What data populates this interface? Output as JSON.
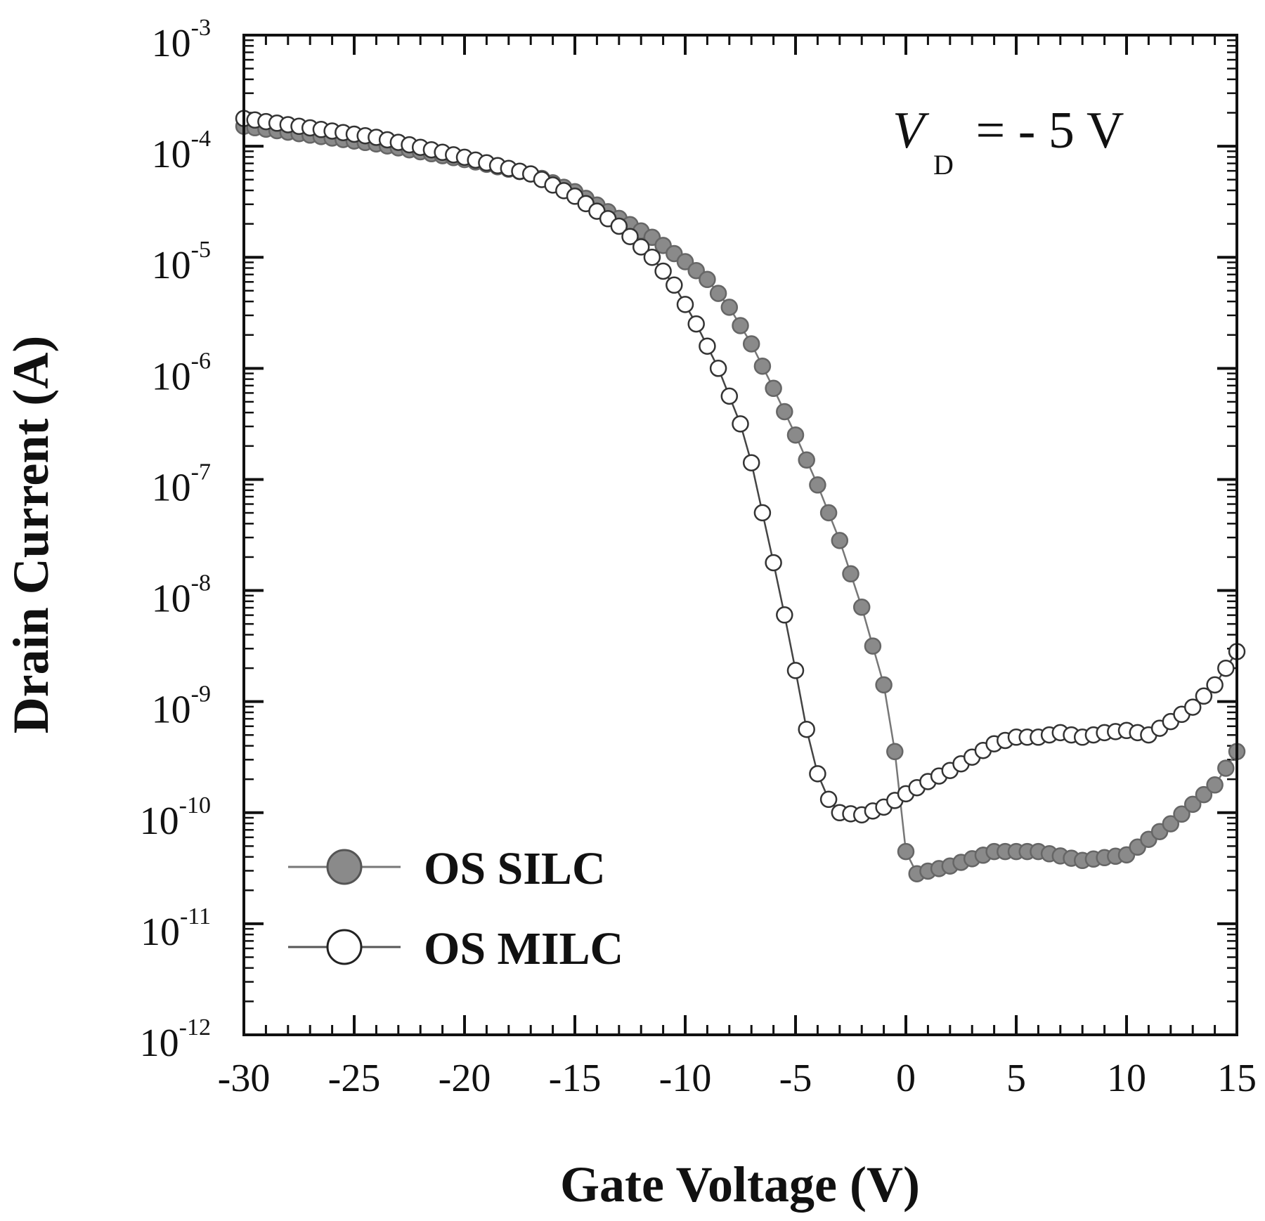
{
  "chart_data": {
    "type": "scatter",
    "xlabel": "Gate Voltage (V)",
    "ylabel": "Drain Current (A)",
    "xlim": [
      -30,
      15
    ],
    "ylim_log10": [
      -12,
      -3
    ],
    "yscale": "log",
    "x_ticks": [
      -30,
      -25,
      -20,
      -15,
      -10,
      -5,
      0,
      5,
      10,
      15
    ],
    "x_tick_labels": [
      "-30",
      "-25",
      "-20",
      "-15",
      "-10",
      "-5",
      "0",
      "5",
      "10",
      "15"
    ],
    "y_ticks_log10": [
      -12,
      -11,
      -10,
      -9,
      -8,
      -7,
      -6,
      -5,
      -4,
      -3
    ],
    "y_tick_labels": [
      {
        "base": "10",
        "exp": "-12"
      },
      {
        "base": "10",
        "exp": "-11"
      },
      {
        "base": "10",
        "exp": "-10"
      },
      {
        "base": "10",
        "exp": "-9"
      },
      {
        "base": "10",
        "exp": "-8"
      },
      {
        "base": "10",
        "exp": "-7"
      },
      {
        "base": "10",
        "exp": "-6"
      },
      {
        "base": "10",
        "exp": "-5"
      },
      {
        "base": "10",
        "exp": "-4"
      },
      {
        "base": "10",
        "exp": "-3"
      }
    ],
    "annotation": {
      "main": "V",
      "sub": "D",
      "rest": " = - 5 V"
    },
    "legend": [
      {
        "name": "OS SILC",
        "marker": "filled-circle"
      },
      {
        "name": "OS MILC",
        "marker": "open-circle"
      }
    ],
    "series": [
      {
        "name": "OS SILC",
        "marker": "filled",
        "color": "#8a8a8a",
        "points_log10": [
          [
            -30,
            -3.82
          ],
          [
            -24,
            -3.98
          ],
          [
            -20,
            -4.12
          ],
          [
            -17,
            -4.25
          ],
          [
            -15,
            -4.41
          ],
          [
            -13,
            -4.65
          ],
          [
            -11.5,
            -4.82
          ],
          [
            -10,
            -5.04
          ],
          [
            -9,
            -5.2
          ],
          [
            -8,
            -5.45
          ],
          [
            -7,
            -5.78
          ],
          [
            -6,
            -6.18
          ],
          [
            -5,
            -6.6
          ],
          [
            -4,
            -7.05
          ],
          [
            -3,
            -7.55
          ],
          [
            -2,
            -8.15
          ],
          [
            -1,
            -8.85
          ],
          [
            -0.5,
            -9.45
          ],
          [
            0,
            -10.35
          ],
          [
            0.5,
            -10.55
          ],
          [
            2,
            -10.48
          ],
          [
            4,
            -10.35
          ],
          [
            6,
            -10.35
          ],
          [
            8,
            -10.43
          ],
          [
            10,
            -10.38
          ],
          [
            12,
            -10.1
          ],
          [
            14,
            -9.75
          ],
          [
            15,
            -9.45
          ]
        ]
      },
      {
        "name": "OS MILC",
        "marker": "open",
        "color": "#333333",
        "points_log10": [
          [
            -30,
            -3.75
          ],
          [
            -24,
            -3.92
          ],
          [
            -20,
            -4.1
          ],
          [
            -17,
            -4.25
          ],
          [
            -15,
            -4.45
          ],
          [
            -13,
            -4.72
          ],
          [
            -11.5,
            -5.0
          ],
          [
            -10.5,
            -5.25
          ],
          [
            -9.5,
            -5.6
          ],
          [
            -8.5,
            -6.0
          ],
          [
            -7.5,
            -6.5
          ],
          [
            -7,
            -6.85
          ],
          [
            -6.5,
            -7.3
          ],
          [
            -6,
            -7.75
          ],
          [
            -5.5,
            -8.22
          ],
          [
            -5,
            -8.72
          ],
          [
            -4.5,
            -9.25
          ],
          [
            -4,
            -9.65
          ],
          [
            -3.5,
            -9.88
          ],
          [
            -3,
            -10.0
          ],
          [
            -2,
            -10.02
          ],
          [
            -1,
            -9.95
          ],
          [
            0,
            -9.83
          ],
          [
            1,
            -9.72
          ],
          [
            2,
            -9.62
          ],
          [
            3,
            -9.5
          ],
          [
            4,
            -9.38
          ],
          [
            5,
            -9.32
          ],
          [
            6,
            -9.32
          ],
          [
            7,
            -9.28
          ],
          [
            8,
            -9.32
          ],
          [
            9,
            -9.28
          ],
          [
            10,
            -9.26
          ],
          [
            11,
            -9.3
          ],
          [
            12,
            -9.18
          ],
          [
            13,
            -9.05
          ],
          [
            14,
            -8.85
          ],
          [
            15,
            -8.55
          ]
        ]
      }
    ]
  }
}
